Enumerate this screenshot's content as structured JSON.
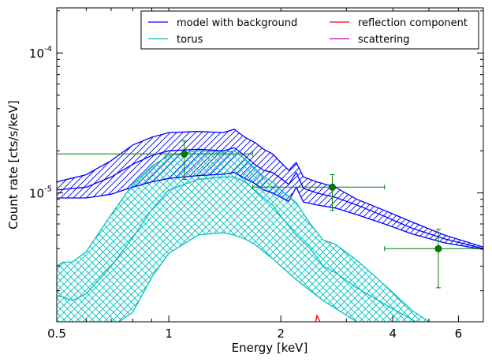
{
  "chart_data": {
    "type": "line",
    "xscale": "log",
    "yscale": "log",
    "xlim": [
      0.5,
      7.0
    ],
    "ylim": [
      1.2e-06,
      0.00021
    ],
    "xlabel": "Energy [keV]",
    "ylabel": "Count rate [cts/s/keV]",
    "grid": false,
    "legend_position": "top-right",
    "xticks": [
      {
        "value": 0.5,
        "label": "0.5"
      },
      {
        "value": 1,
        "label": "1"
      },
      {
        "value": 2,
        "label": "2"
      },
      {
        "value": 4,
        "label": "4"
      },
      {
        "value": 6,
        "label": "6"
      }
    ],
    "yticks": [
      {
        "value": 1e-05,
        "label": "10",
        "exp": "-5"
      },
      {
        "value": 0.0001,
        "label": "10",
        "exp": "-4"
      }
    ],
    "legend": [
      {
        "label": "model with background",
        "color": "#0000ff"
      },
      {
        "label": "reflection component",
        "color": "#ff0000"
      },
      {
        "label": "torus",
        "color": "#00bfbf"
      },
      {
        "label": "scattering",
        "color": "#bf00bf"
      }
    ],
    "series": [
      {
        "name": "model with background",
        "color": "#0000ff",
        "band": true,
        "x": [
          0.5,
          0.6,
          0.7,
          0.8,
          0.9,
          1.0,
          1.2,
          1.4,
          1.5,
          1.6,
          1.7,
          1.8,
          1.9,
          2.0,
          2.1,
          2.2,
          2.3,
          2.5,
          2.8,
          3.2,
          3.8,
          4.5,
          5.5,
          7.0
        ],
        "upper": [
          1.2e-05,
          1.35e-05,
          1.7e-05,
          2.2e-05,
          2.5e-05,
          2.7e-05,
          2.75e-05,
          2.7e-05,
          2.85e-05,
          2.5e-05,
          2.3e-05,
          2.05e-05,
          1.9e-05,
          1.65e-05,
          1.45e-05,
          1.65e-05,
          1.3e-05,
          1.2e-05,
          1.1e-05,
          9e-06,
          7.5e-06,
          6.2e-06,
          5e-06,
          4.1e-06
        ],
        "lower": [
          9.2e-06,
          9.2e-06,
          9.8e-06,
          1.1e-05,
          1.2e-05,
          1.27e-05,
          1.33e-05,
          1.36e-05,
          1.4e-05,
          1.27e-05,
          1.17e-05,
          1.05e-05,
          1e-05,
          9.3e-06,
          8.7e-06,
          1.1e-05,
          8.6e-06,
          8.2e-06,
          7.8e-06,
          7e-06,
          6e-06,
          5.1e-06,
          4.4e-06,
          3.95e-06
        ],
        "mid": [
          1.05e-05,
          1.1e-05,
          1.3e-05,
          1.6e-05,
          1.85e-05,
          2e-05,
          2.05e-05,
          2e-05,
          2.1e-05,
          1.85e-05,
          1.6e-05,
          1.45e-05,
          1.4e-05,
          1.27e-05,
          1.15e-05,
          1.4e-05,
          1.08e-05,
          1e-05,
          9.3e-06,
          8.2e-06,
          6.8e-06,
          5.6e-06,
          4.7e-06,
          4e-06
        ]
      },
      {
        "name": "torus",
        "color": "#00bfbf",
        "band": true,
        "x": [
          0.5,
          0.52,
          0.55,
          0.6,
          0.7,
          0.8,
          0.9,
          1.0,
          1.2,
          1.4,
          1.5,
          1.6,
          1.7,
          1.8,
          1.9,
          2.0,
          2.2,
          2.4,
          2.6,
          2.8,
          3.2,
          3.8,
          4.5,
          5.0,
          5.5
        ],
        "upper": [
          3e-06,
          3.2e-06,
          3.2e-06,
          3.8e-06,
          7e-06,
          1.15e-05,
          1.55e-05,
          1.85e-05,
          2e-05,
          1.95e-05,
          2e-05,
          1.75e-05,
          1.5e-05,
          1.3e-05,
          1.2e-05,
          1.05e-05,
          8.5e-06,
          6e-06,
          4.6e-06,
          4.3e-06,
          3.3e-06,
          2.2e-06,
          1.45e-06,
          1.2e-06,
          1.05e-06
        ],
        "lower": [
          1.1e-06,
          1.1e-06,
          1.1e-06,
          1.1e-06,
          1.1e-06,
          1.4e-06,
          2.5e-06,
          3.7e-06,
          5e-06,
          5.2e-06,
          5e-06,
          4.7e-06,
          4.3e-06,
          3.8e-06,
          3.4e-06,
          3e-06,
          2.4e-06,
          2e-06,
          1.7e-06,
          1.5e-06,
          1.2e-06,
          1.05e-06,
          1e-06,
          1e-06,
          1e-06
        ],
        "mid": [
          1.85e-06,
          1.8e-06,
          1.7e-06,
          1.9e-06,
          3e-06,
          4.8e-06,
          7.6e-06,
          1.05e-05,
          1.25e-05,
          1.3e-05,
          1.3e-05,
          1.2e-05,
          1.05e-05,
          9.2e-06,
          8.2e-06,
          6.8e-06,
          5e-06,
          4e-06,
          3e-06,
          2.7e-06,
          2.1e-06,
          1.6e-06,
          1.25e-06,
          1.05e-06,
          1e-06
        ]
      },
      {
        "name": "reflection component",
        "color": "#ff0000",
        "x": [
          2.45,
          2.5,
          2.55,
          2.6
        ],
        "y": [
          1e-06,
          1.33e-06,
          1.2e-06,
          1e-06
        ]
      },
      {
        "name": "scattering",
        "color": "#bf00bf",
        "x": [],
        "y": []
      }
    ],
    "data_points": {
      "color": "#008000",
      "points": [
        {
          "x": 1.1,
          "y": 1.9e-05,
          "xerr": [
            0.5,
            1.68
          ],
          "yerr": [
            1.25e-05,
            2.35e-05
          ]
        },
        {
          "x": 2.75,
          "y": 1.1e-05,
          "xerr": [
            1.68,
            3.8
          ],
          "yerr": [
            7.5e-06,
            1.35e-05
          ]
        },
        {
          "x": 5.3,
          "y": 4e-06,
          "xerr": [
            3.8,
            7.0
          ],
          "yerr": [
            2.1e-06,
            5.5e-06
          ]
        }
      ]
    }
  }
}
